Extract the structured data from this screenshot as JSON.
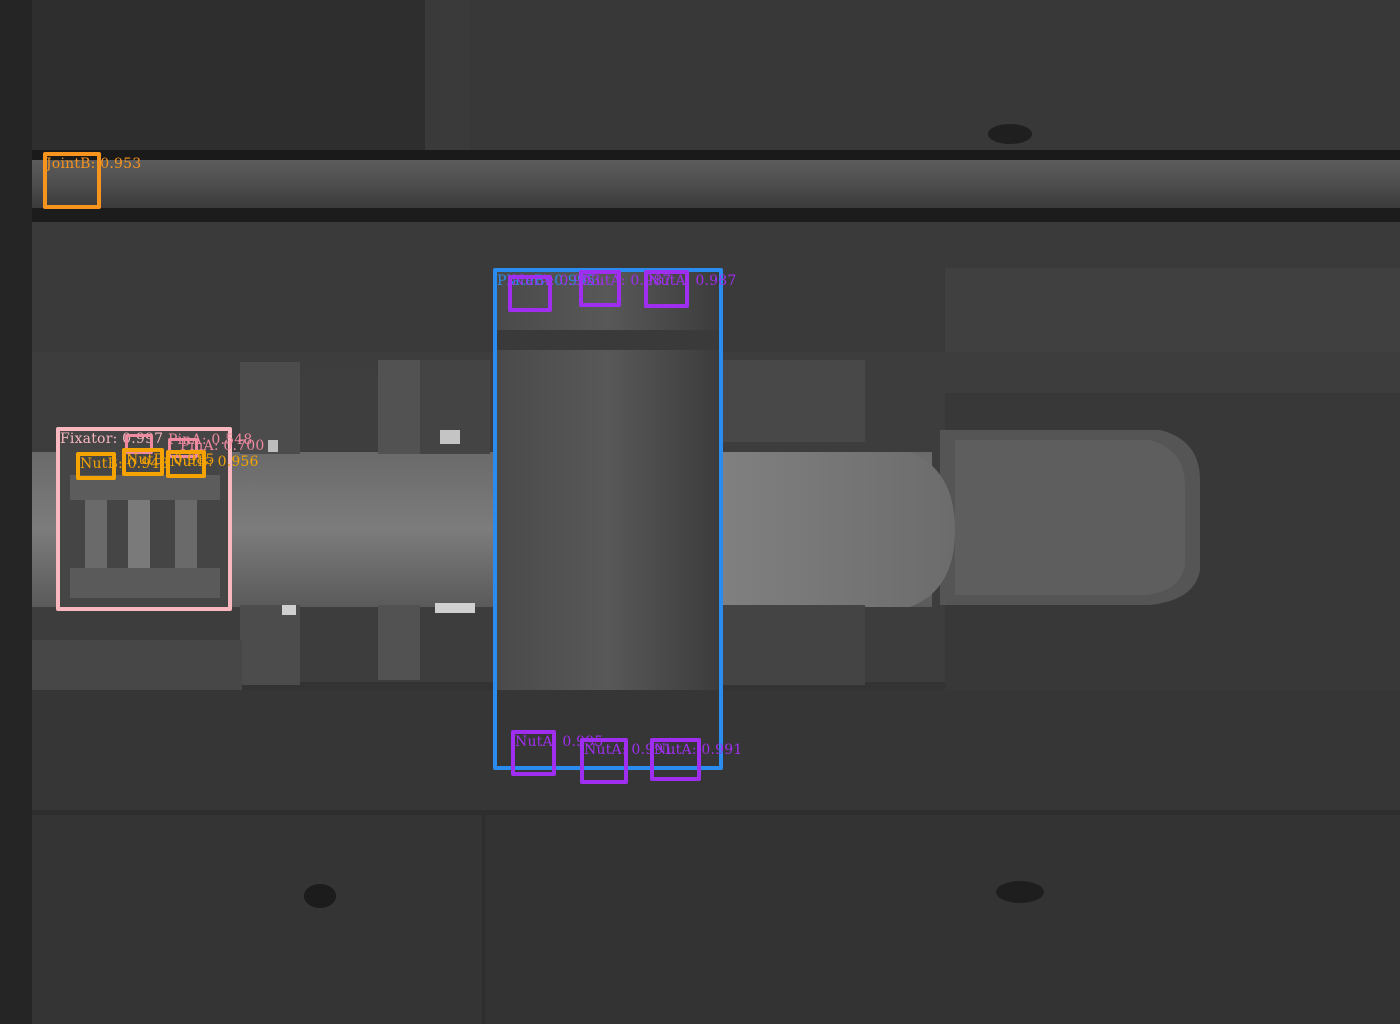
{
  "colors": {
    "joint_orange": "#f7941d",
    "plate_blue": "#2b8cf0",
    "nut_purple": "#a02ef0",
    "fixator_pink": "#f9b8c0",
    "fixator_label": "#f08aa0",
    "nut_yellow": "#f4a300"
  },
  "detections": {
    "joint": {
      "label": "JointB",
      "score": "0.953"
    },
    "plate": {
      "label": "PlateB",
      "score": "0.995"
    },
    "plate_top_nuts": [
      {
        "label": "NutA",
        "score": "0.993"
      },
      {
        "label": "NutA",
        "score": "0.987"
      },
      {
        "label": "NutA",
        "score": "0.987"
      }
    ],
    "plate_bottom_nuts": [
      {
        "label": "NutA",
        "score": "0.995"
      },
      {
        "label": "NutA",
        "score": "0.991"
      },
      {
        "label": "NutA",
        "score": "0.991"
      }
    ],
    "fixator": {
      "label": "Fixator",
      "score": "0.997"
    },
    "fixator_nuts": [
      {
        "label": "NutB",
        "score": "0.948"
      },
      {
        "label": "NutB",
        "score": "0.985"
      },
      {
        "label": "NutB",
        "score": "0.956"
      }
    ],
    "fixator_pins": [
      {
        "label": "PinA",
        "score": "0.548"
      },
      {
        "label": "PinA",
        "score": "0.700"
      }
    ]
  }
}
